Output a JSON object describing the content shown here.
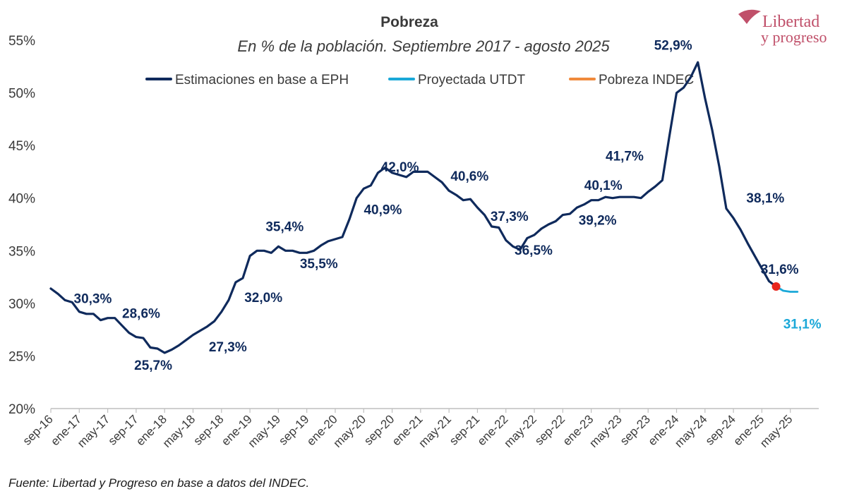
{
  "chart_data": {
    "type": "line",
    "title": "Pobreza",
    "subtitle": "En % de la población. Septiembre 2017 - agosto 2025",
    "xlabel": "",
    "ylabel": "",
    "ylim": [
      20,
      55
    ],
    "y_ticks": [
      "20%",
      "25%",
      "30%",
      "35%",
      "40%",
      "45%",
      "50%",
      "55%"
    ],
    "x_ticks": [
      "sep-16",
      "ene-17",
      "may-17",
      "sep-17",
      "ene-18",
      "may-18",
      "sep-18",
      "ene-19",
      "may-19",
      "sep-19",
      "ene-20",
      "may-20",
      "sep-20",
      "ene-21",
      "may-21",
      "sep-21",
      "ene-22",
      "may-22",
      "sep-22",
      "ene-23",
      "may-23",
      "sep-23",
      "ene-24",
      "may-24",
      "sep-24",
      "ene-25",
      "may-25"
    ],
    "grid": false,
    "legend_position": "top",
    "legend": [
      {
        "label": "Estimaciones en base a EPH",
        "color": "#0f2a5c"
      },
      {
        "label": "Proyectada UTDT",
        "color": "#1aa8d8"
      },
      {
        "label": "Pobreza INDEC",
        "color": "#f08a3c"
      }
    ],
    "series": [
      {
        "name": "Estimaciones en base a EPH",
        "color": "#0f2a5c",
        "points": [
          [
            0,
            31.4
          ],
          [
            1,
            30.9
          ],
          [
            2,
            30.3
          ],
          [
            3,
            30.1
          ],
          [
            4,
            29.2
          ],
          [
            5,
            29.0
          ],
          [
            6,
            29.0
          ],
          [
            7,
            28.4
          ],
          [
            8,
            28.6
          ],
          [
            9,
            28.6
          ],
          [
            10,
            27.9
          ],
          [
            11,
            27.2
          ],
          [
            12,
            26.8
          ],
          [
            13,
            26.7
          ],
          [
            14,
            25.8
          ],
          [
            15,
            25.7
          ],
          [
            16,
            25.3
          ],
          [
            17,
            25.6
          ],
          [
            18,
            26.0
          ],
          [
            19,
            26.5
          ],
          [
            20,
            27.0
          ],
          [
            21,
            27.4
          ],
          [
            22,
            27.8
          ],
          [
            23,
            28.3
          ],
          [
            24,
            29.2
          ],
          [
            25,
            30.3
          ],
          [
            26,
            32.0
          ],
          [
            27,
            32.4
          ],
          [
            28,
            34.5
          ],
          [
            29,
            35.0
          ],
          [
            30,
            35.0
          ],
          [
            31,
            34.8
          ],
          [
            32,
            35.4
          ],
          [
            33,
            35.0
          ],
          [
            34,
            35.0
          ],
          [
            35,
            34.8
          ],
          [
            36,
            34.8
          ],
          [
            37,
            35.0
          ],
          [
            38,
            35.5
          ],
          [
            39,
            35.9
          ],
          [
            40,
            36.1
          ],
          [
            41,
            36.3
          ],
          [
            42,
            38.0
          ],
          [
            43,
            40.0
          ],
          [
            44,
            40.9
          ],
          [
            45,
            41.2
          ],
          [
            46,
            42.4
          ],
          [
            47,
            42.9
          ],
          [
            48,
            42.4
          ],
          [
            49,
            42.2
          ],
          [
            50,
            42.0
          ],
          [
            51,
            42.5
          ],
          [
            52,
            42.5
          ],
          [
            53,
            42.5
          ],
          [
            54,
            42.0
          ],
          [
            55,
            41.5
          ],
          [
            56,
            40.7
          ],
          [
            57,
            40.3
          ],
          [
            58,
            39.8
          ],
          [
            59,
            39.9
          ],
          [
            60,
            39.1
          ],
          [
            61,
            38.4
          ],
          [
            62,
            37.3
          ],
          [
            63,
            37.2
          ],
          [
            64,
            36.0
          ],
          [
            65,
            35.4
          ],
          [
            66,
            35.1
          ],
          [
            67,
            36.2
          ],
          [
            68,
            36.5
          ],
          [
            69,
            37.1
          ],
          [
            70,
            37.5
          ],
          [
            71,
            37.8
          ],
          [
            72,
            38.4
          ],
          [
            73,
            38.5
          ],
          [
            74,
            39.1
          ],
          [
            75,
            39.4
          ],
          [
            76,
            39.8
          ],
          [
            77,
            39.8
          ],
          [
            78,
            40.1
          ],
          [
            79,
            40.0
          ],
          [
            80,
            40.1
          ],
          [
            81,
            40.1
          ],
          [
            82,
            40.1
          ],
          [
            83,
            40.0
          ],
          [
            84,
            40.6
          ],
          [
            85,
            41.1
          ],
          [
            86,
            41.7
          ],
          [
            87,
            45.9
          ],
          [
            88,
            50.0
          ],
          [
            89,
            50.5
          ],
          [
            90,
            51.5
          ],
          [
            91,
            52.9
          ],
          [
            92,
            49.5
          ],
          [
            93,
            46.5
          ],
          [
            94,
            43.0
          ],
          [
            95,
            39.0
          ],
          [
            96,
            38.1
          ],
          [
            97,
            37.0
          ],
          [
            98,
            35.7
          ],
          [
            99,
            34.5
          ],
          [
            100,
            33.3
          ],
          [
            101,
            32.1
          ],
          [
            102,
            31.6
          ]
        ]
      },
      {
        "name": "Proyectada UTDT",
        "color": "#1aa8d8",
        "points": [
          [
            102,
            31.6
          ],
          [
            103,
            31.2
          ],
          [
            104,
            31.1
          ],
          [
            105,
            31.1
          ]
        ]
      },
      {
        "name": "Pobreza INDEC",
        "color": "#e8261e",
        "points": [
          [
            102,
            31.6
          ]
        ]
      }
    ],
    "annotations": [
      {
        "text": "30,3%",
        "x": 7,
        "y": 30.3,
        "color": "dark"
      },
      {
        "text": "28,6%",
        "x": 14,
        "y": 28.6,
        "color": "dark"
      },
      {
        "text": "25,7%",
        "x": 15.5,
        "y": 25.7,
        "color": "dark"
      },
      {
        "text": "27,3%",
        "x": 25,
        "y": 27.3,
        "color": "dark"
      },
      {
        "text": "32,0%",
        "x": 30,
        "y": 32.0,
        "color": "dark"
      },
      {
        "text": "35,4%",
        "x": 32,
        "y": 35.4,
        "color": "dark"
      },
      {
        "text": "35,5%",
        "x": 38,
        "y": 35.5,
        "color": "dark"
      },
      {
        "text": "42,0%",
        "x": 49,
        "y": 42.0,
        "color": "dark"
      },
      {
        "text": "40,9%",
        "x": 47,
        "y": 40.9,
        "color": "dark"
      },
      {
        "text": "40,6%",
        "x": 59,
        "y": 40.6,
        "color": "dark"
      },
      {
        "text": "37,3%",
        "x": 65,
        "y": 37.3,
        "color": "dark"
      },
      {
        "text": "36,5%",
        "x": 68,
        "y": 36.5,
        "color": "dark"
      },
      {
        "text": "39,2%",
        "x": 77,
        "y": 39.2,
        "color": "dark"
      },
      {
        "text": "40,1%",
        "x": 78,
        "y": 40.1,
        "color": "dark"
      },
      {
        "text": "41,7%",
        "x": 81,
        "y": 41.7,
        "color": "dark"
      },
      {
        "text": "52,9%",
        "x": 91,
        "y": 52.9,
        "color": "dark"
      },
      {
        "text": "38,1%",
        "x": 100,
        "y": 38.1,
        "color": "dark"
      },
      {
        "text": "31,6%",
        "x": 104,
        "y": 31.6,
        "color": "dark"
      },
      {
        "text": "31,1%",
        "x": 104,
        "y": 31.1,
        "color": "proj"
      }
    ]
  },
  "source": "Fuente: Libertad y Progreso en base a datos del INDEC.",
  "logo": {
    "line1": "Libertad",
    "line2": "y progreso",
    "color": "#c0506a"
  }
}
